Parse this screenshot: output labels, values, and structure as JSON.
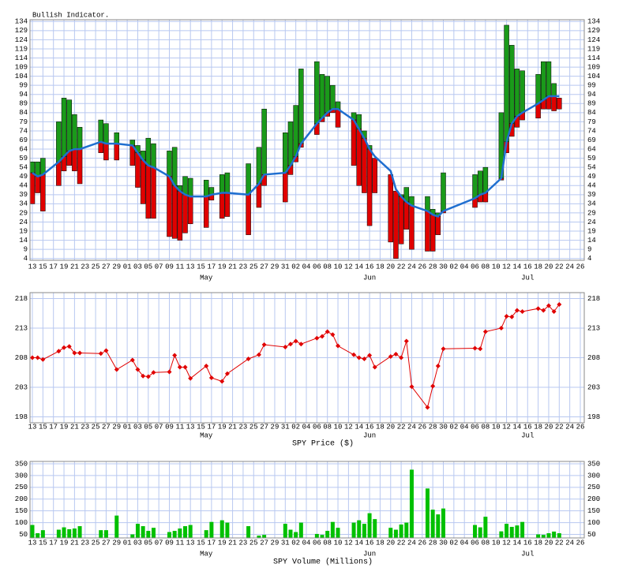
{
  "chart_data": [
    {
      "type": "hilo",
      "title": "Bullish Indicator.",
      "x": [
        0,
        1,
        2,
        5,
        6,
        7,
        8,
        9,
        13,
        14,
        16,
        19,
        20,
        21,
        22,
        23,
        26,
        27,
        28,
        29,
        30,
        33,
        34,
        36,
        37,
        41,
        43,
        44,
        48,
        49,
        50,
        51,
        54,
        55,
        56,
        57,
        58,
        61,
        62,
        63,
        64,
        65,
        68,
        69,
        70,
        71,
        72,
        75,
        76,
        77,
        78,
        84,
        85,
        86,
        89,
        90,
        91,
        92,
        93,
        96,
        97,
        98,
        99,
        100
      ],
      "high": [
        57,
        57,
        59,
        79,
        92,
        91,
        83,
        76,
        80,
        78,
        73,
        69,
        66,
        63,
        70,
        67,
        63,
        65,
        44,
        49,
        48,
        47,
        43,
        50,
        51,
        56,
        65,
        86,
        73,
        79,
        88,
        108,
        112,
        105,
        104,
        99,
        90,
        84,
        83,
        74,
        66,
        59,
        50,
        41,
        39,
        43,
        38,
        38,
        31,
        29,
        51,
        50,
        52,
        54,
        84,
        132,
        121,
        108,
        107,
        105,
        112,
        112,
        100,
        92
      ],
      "low": [
        34,
        40,
        30,
        44,
        52,
        55,
        52,
        45,
        62,
        58,
        58,
        55,
        43,
        34,
        26,
        26,
        16,
        15,
        14,
        18,
        23,
        21,
        36,
        26,
        27,
        17,
        32,
        44,
        35,
        50,
        57,
        65,
        72,
        79,
        82,
        84,
        76,
        55,
        44,
        40,
        22,
        40,
        13,
        4,
        12,
        20,
        9,
        8,
        8,
        17,
        29,
        32,
        35,
        35,
        47,
        62,
        71,
        76,
        80,
        81,
        86,
        86,
        85,
        86
      ],
      "line": [
        51,
        49,
        50,
        57,
        60,
        63,
        64,
        64,
        68,
        67,
        67,
        66,
        62,
        58,
        55,
        54,
        49,
        44,
        41,
        39,
        38,
        38,
        39,
        40,
        40,
        39,
        45,
        50,
        51,
        55,
        60,
        67,
        78,
        81,
        84,
        86,
        86,
        80,
        75,
        70,
        64,
        60,
        52,
        42,
        38,
        35,
        33,
        30,
        28,
        27,
        30,
        37,
        39,
        40,
        48,
        68,
        78,
        82,
        84,
        89,
        91,
        93,
        93,
        93
      ],
      "up_color": "#1a9a1a",
      "down_color": "#e00000",
      "line_color": "#1f6fd0",
      "xlim": [
        -0.45,
        104.75
      ],
      "ylim": [
        3,
        135
      ],
      "yticks": [
        4,
        9,
        14,
        19,
        24,
        29,
        34,
        39,
        44,
        49,
        54,
        59,
        64,
        69,
        74,
        79,
        84,
        89,
        94,
        99,
        104,
        109,
        114,
        119,
        124,
        129,
        134
      ],
      "xticks": [
        {
          "value": 0,
          "label": "13"
        },
        {
          "value": 2,
          "label": "15"
        },
        {
          "value": 4,
          "label": "17"
        },
        {
          "value": 6,
          "label": "19"
        },
        {
          "value": 8,
          "label": "21"
        },
        {
          "value": 10,
          "label": "23"
        },
        {
          "value": 12,
          "label": "25"
        },
        {
          "value": 14,
          "label": "27"
        },
        {
          "value": 16,
          "label": "29"
        },
        {
          "value": 18,
          "label": "01"
        },
        {
          "value": 20,
          "label": "03"
        },
        {
          "value": 22,
          "label": "05"
        },
        {
          "value": 24,
          "label": "07"
        },
        {
          "value": 26,
          "label": "09"
        },
        {
          "value": 28,
          "label": "11"
        },
        {
          "value": 30,
          "label": "13"
        },
        {
          "value": 32,
          "label": "15"
        },
        {
          "value": 34,
          "label": "17"
        },
        {
          "value": 36,
          "label": "19"
        },
        {
          "value": 38,
          "label": "21"
        },
        {
          "value": 40,
          "label": "23"
        },
        {
          "value": 42,
          "label": "25"
        },
        {
          "value": 44,
          "label": "27"
        },
        {
          "value": 46,
          "label": "29"
        },
        {
          "value": 48,
          "label": "31"
        },
        {
          "value": 50,
          "label": "02"
        },
        {
          "value": 52,
          "label": "04"
        },
        {
          "value": 54,
          "label": "06"
        },
        {
          "value": 56,
          "label": "08"
        },
        {
          "value": 58,
          "label": "10"
        },
        {
          "value": 60,
          "label": "12"
        },
        {
          "value": 62,
          "label": "14"
        },
        {
          "value": 64,
          "label": "16"
        },
        {
          "value": 66,
          "label": "18"
        },
        {
          "value": 68,
          "label": "20"
        },
        {
          "value": 70,
          "label": "22"
        },
        {
          "value": 72,
          "label": "24"
        },
        {
          "value": 74,
          "label": "26"
        },
        {
          "value": 76,
          "label": "28"
        },
        {
          "value": 78,
          "label": "30"
        },
        {
          "value": 80,
          "label": "02"
        },
        {
          "value": 82,
          "label": "04"
        },
        {
          "value": 84,
          "label": "06"
        },
        {
          "value": 86,
          "label": "08"
        },
        {
          "value": 88,
          "label": "10"
        },
        {
          "value": 90,
          "label": "12"
        },
        {
          "value": 92,
          "label": "14"
        },
        {
          "value": 94,
          "label": "16"
        },
        {
          "value": 96,
          "label": "18"
        },
        {
          "value": 98,
          "label": "20"
        },
        {
          "value": 100,
          "label": "22"
        },
        {
          "value": 102,
          "label": "24"
        },
        {
          "value": 104,
          "label": "26"
        }
      ],
      "month_labels": [
        {
          "value": 33,
          "label": "May"
        },
        {
          "value": 64,
          "label": "Jun"
        },
        {
          "value": 94,
          "label": "Jul"
        }
      ],
      "grid": true
    },
    {
      "type": "line",
      "xlabel": "SPY Price ($)",
      "x": [
        0,
        1,
        2,
        5,
        6,
        7,
        8,
        9,
        13,
        14,
        16,
        19,
        20,
        21,
        22,
        23,
        26,
        27,
        28,
        29,
        30,
        33,
        34,
        36,
        37,
        41,
        43,
        44,
        48,
        49,
        50,
        51,
        54,
        55,
        56,
        57,
        58,
        61,
        62,
        63,
        64,
        65,
        68,
        69,
        70,
        71,
        72,
        75,
        76,
        77,
        78,
        84,
        85,
        86,
        89,
        90,
        91,
        92,
        93,
        96,
        97,
        98,
        99,
        100
      ],
      "values": [
        208.0,
        208.0,
        207.7,
        209.1,
        209.7,
        209.9,
        208.8,
        208.8,
        208.7,
        209.2,
        206.0,
        207.6,
        206.0,
        204.9,
        204.8,
        205.5,
        205.6,
        208.4,
        206.4,
        206.4,
        204.5,
        206.6,
        204.6,
        204.0,
        205.3,
        207.8,
        208.5,
        210.2,
        209.8,
        210.3,
        210.8,
        210.3,
        211.3,
        211.6,
        212.4,
        211.9,
        210.0,
        208.5,
        208.0,
        207.8,
        208.4,
        206.4,
        208.2,
        208.6,
        208.0,
        210.8,
        203.1,
        199.6,
        203.2,
        206.6,
        209.5,
        209.6,
        209.5,
        212.4,
        213.0,
        215.0,
        214.9,
        216.0,
        215.8,
        216.3,
        216.0,
        216.8,
        215.8,
        217.0
      ],
      "color": "#e00000",
      "xlim": [
        -0.45,
        104.75
      ],
      "ylim": [
        197,
        219
      ],
      "yticks": [
        198,
        203,
        208,
        213,
        218
      ],
      "xticks": [
        {
          "value": 0,
          "label": "13"
        },
        {
          "value": 2,
          "label": "15"
        },
        {
          "value": 4,
          "label": "17"
        },
        {
          "value": 6,
          "label": "19"
        },
        {
          "value": 8,
          "label": "21"
        },
        {
          "value": 10,
          "label": "23"
        },
        {
          "value": 12,
          "label": "25"
        },
        {
          "value": 14,
          "label": "27"
        },
        {
          "value": 16,
          "label": "29"
        },
        {
          "value": 18,
          "label": "01"
        },
        {
          "value": 20,
          "label": "03"
        },
        {
          "value": 22,
          "label": "05"
        },
        {
          "value": 24,
          "label": "07"
        },
        {
          "value": 26,
          "label": "09"
        },
        {
          "value": 28,
          "label": "11"
        },
        {
          "value": 30,
          "label": "13"
        },
        {
          "value": 32,
          "label": "15"
        },
        {
          "value": 34,
          "label": "17"
        },
        {
          "value": 36,
          "label": "19"
        },
        {
          "value": 38,
          "label": "21"
        },
        {
          "value": 40,
          "label": "23"
        },
        {
          "value": 42,
          "label": "25"
        },
        {
          "value": 44,
          "label": "27"
        },
        {
          "value": 46,
          "label": "29"
        },
        {
          "value": 48,
          "label": "31"
        },
        {
          "value": 50,
          "label": "02"
        },
        {
          "value": 52,
          "label": "04"
        },
        {
          "value": 54,
          "label": "06"
        },
        {
          "value": 56,
          "label": "08"
        },
        {
          "value": 58,
          "label": "10"
        },
        {
          "value": 60,
          "label": "12"
        },
        {
          "value": 62,
          "label": "14"
        },
        {
          "value": 64,
          "label": "16"
        },
        {
          "value": 66,
          "label": "18"
        },
        {
          "value": 68,
          "label": "20"
        },
        {
          "value": 70,
          "label": "22"
        },
        {
          "value": 72,
          "label": "24"
        },
        {
          "value": 74,
          "label": "26"
        },
        {
          "value": 76,
          "label": "28"
        },
        {
          "value": 78,
          "label": "30"
        },
        {
          "value": 80,
          "label": "02"
        },
        {
          "value": 82,
          "label": "04"
        },
        {
          "value": 84,
          "label": "06"
        },
        {
          "value": 86,
          "label": "08"
        },
        {
          "value": 88,
          "label": "10"
        },
        {
          "value": 90,
          "label": "12"
        },
        {
          "value": 92,
          "label": "14"
        },
        {
          "value": 94,
          "label": "16"
        },
        {
          "value": 96,
          "label": "18"
        },
        {
          "value": 98,
          "label": "20"
        },
        {
          "value": 100,
          "label": "22"
        },
        {
          "value": 102,
          "label": "24"
        },
        {
          "value": 104,
          "label": "26"
        }
      ],
      "month_labels": [
        {
          "value": 33,
          "label": "May"
        },
        {
          "value": 64,
          "label": "Jun"
        },
        {
          "value": 94,
          "label": "Jul"
        }
      ],
      "grid": true
    },
    {
      "type": "bar",
      "xlabel": "SPY Volume (Millions)",
      "x": [
        0,
        1,
        2,
        5,
        6,
        7,
        8,
        9,
        13,
        14,
        16,
        19,
        20,
        21,
        22,
        23,
        26,
        27,
        28,
        29,
        30,
        33,
        34,
        36,
        37,
        41,
        43,
        44,
        48,
        49,
        50,
        51,
        54,
        55,
        56,
        57,
        58,
        61,
        62,
        63,
        64,
        65,
        68,
        69,
        70,
        71,
        72,
        75,
        76,
        77,
        78,
        84,
        85,
        86,
        89,
        90,
        91,
        92,
        93,
        96,
        97,
        98,
        99,
        100
      ],
      "values": [
        90,
        55,
        68,
        70,
        80,
        72,
        75,
        85,
        68,
        68,
        130,
        50,
        95,
        85,
        65,
        78,
        60,
        65,
        75,
        85,
        90,
        68,
        103,
        110,
        100,
        85,
        45,
        48,
        95,
        70,
        60,
        100,
        52,
        48,
        65,
        103,
        78,
        100,
        110,
        95,
        140,
        115,
        78,
        70,
        92,
        100,
        325,
        245,
        155,
        135,
        160,
        90,
        80,
        125,
        63,
        95,
        82,
        88,
        103,
        50,
        48,
        55,
        62,
        55
      ],
      "color": "#00c000",
      "xlim": [
        -0.45,
        104.75
      ],
      "ylim": [
        35,
        360
      ],
      "yticks": [
        50,
        100,
        150,
        200,
        250,
        300,
        350
      ],
      "xticks": [
        {
          "value": 0,
          "label": "13"
        },
        {
          "value": 2,
          "label": "15"
        },
        {
          "value": 4,
          "label": "17"
        },
        {
          "value": 6,
          "label": "19"
        },
        {
          "value": 8,
          "label": "21"
        },
        {
          "value": 10,
          "label": "23"
        },
        {
          "value": 12,
          "label": "25"
        },
        {
          "value": 14,
          "label": "27"
        },
        {
          "value": 16,
          "label": "29"
        },
        {
          "value": 18,
          "label": "01"
        },
        {
          "value": 20,
          "label": "03"
        },
        {
          "value": 22,
          "label": "05"
        },
        {
          "value": 24,
          "label": "07"
        },
        {
          "value": 26,
          "label": "09"
        },
        {
          "value": 28,
          "label": "11"
        },
        {
          "value": 30,
          "label": "13"
        },
        {
          "value": 32,
          "label": "15"
        },
        {
          "value": 34,
          "label": "17"
        },
        {
          "value": 36,
          "label": "19"
        },
        {
          "value": 38,
          "label": "21"
        },
        {
          "value": 40,
          "label": "23"
        },
        {
          "value": 42,
          "label": "25"
        },
        {
          "value": 44,
          "label": "27"
        },
        {
          "value": 46,
          "label": "29"
        },
        {
          "value": 48,
          "label": "31"
        },
        {
          "value": 50,
          "label": "02"
        },
        {
          "value": 52,
          "label": "04"
        },
        {
          "value": 54,
          "label": "06"
        },
        {
          "value": 56,
          "label": "08"
        },
        {
          "value": 58,
          "label": "10"
        },
        {
          "value": 60,
          "label": "12"
        },
        {
          "value": 62,
          "label": "14"
        },
        {
          "value": 64,
          "label": "16"
        },
        {
          "value": 66,
          "label": "18"
        },
        {
          "value": 68,
          "label": "20"
        },
        {
          "value": 70,
          "label": "22"
        },
        {
          "value": 72,
          "label": "24"
        },
        {
          "value": 74,
          "label": "26"
        },
        {
          "value": 76,
          "label": "28"
        },
        {
          "value": 78,
          "label": "30"
        },
        {
          "value": 80,
          "label": "02"
        },
        {
          "value": 82,
          "label": "04"
        },
        {
          "value": 84,
          "label": "06"
        },
        {
          "value": 86,
          "label": "08"
        },
        {
          "value": 88,
          "label": "10"
        },
        {
          "value": 90,
          "label": "12"
        },
        {
          "value": 92,
          "label": "14"
        },
        {
          "value": 94,
          "label": "16"
        },
        {
          "value": 96,
          "label": "18"
        },
        {
          "value": 98,
          "label": "20"
        },
        {
          "value": 100,
          "label": "22"
        },
        {
          "value": 102,
          "label": "24"
        },
        {
          "value": 104,
          "label": "26"
        }
      ],
      "month_labels": [
        {
          "value": 33,
          "label": "May"
        },
        {
          "value": 64,
          "label": "Jun"
        },
        {
          "value": 94,
          "label": "Jul"
        }
      ],
      "grid": true
    }
  ]
}
